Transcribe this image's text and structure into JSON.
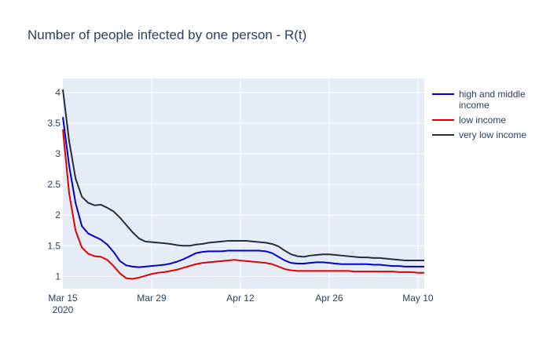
{
  "chart_data": {
    "type": "line",
    "title": "Number of people infected by one person - R(t)",
    "xlabel": "",
    "ylabel": "",
    "x_tick_labels": [
      "Mar 15\n2020",
      "Mar 29",
      "Apr 12",
      "Apr 26",
      "May 10"
    ],
    "y_tick_labels": [
      "1",
      "1.5",
      "2",
      "2.5",
      "3",
      "3.5",
      "4"
    ],
    "ylim": [
      0.8,
      4.23
    ],
    "xlim": [
      "2020-03-15",
      "2020-05-11"
    ],
    "grid": true,
    "legend_position": "top-right",
    "background_color": "#e5ecf6",
    "x": [
      "2020-03-15",
      "2020-03-16",
      "2020-03-17",
      "2020-03-18",
      "2020-03-19",
      "2020-03-20",
      "2020-03-21",
      "2020-03-22",
      "2020-03-23",
      "2020-03-24",
      "2020-03-25",
      "2020-03-26",
      "2020-03-27",
      "2020-03-28",
      "2020-03-29",
      "2020-03-30",
      "2020-03-31",
      "2020-04-01",
      "2020-04-02",
      "2020-04-03",
      "2020-04-04",
      "2020-04-05",
      "2020-04-06",
      "2020-04-07",
      "2020-04-08",
      "2020-04-09",
      "2020-04-10",
      "2020-04-11",
      "2020-04-12",
      "2020-04-13",
      "2020-04-14",
      "2020-04-15",
      "2020-04-16",
      "2020-04-17",
      "2020-04-18",
      "2020-04-19",
      "2020-04-20",
      "2020-04-21",
      "2020-04-22",
      "2020-04-23",
      "2020-04-24",
      "2020-04-25",
      "2020-04-26",
      "2020-04-27",
      "2020-04-28",
      "2020-04-29",
      "2020-04-30",
      "2020-05-01",
      "2020-05-02",
      "2020-05-03",
      "2020-05-04",
      "2020-05-05",
      "2020-05-06",
      "2020-05-07",
      "2020-05-08",
      "2020-05-09",
      "2020-05-10",
      "2020-05-11"
    ],
    "series": [
      {
        "name": "high and middle income",
        "color": "#0000cc",
        "values": [
          3.6,
          2.8,
          2.2,
          1.82,
          1.7,
          1.65,
          1.6,
          1.52,
          1.4,
          1.25,
          1.18,
          1.16,
          1.15,
          1.16,
          1.17,
          1.18,
          1.19,
          1.21,
          1.24,
          1.28,
          1.33,
          1.38,
          1.4,
          1.41,
          1.41,
          1.41,
          1.42,
          1.42,
          1.42,
          1.42,
          1.42,
          1.42,
          1.41,
          1.38,
          1.32,
          1.26,
          1.22,
          1.21,
          1.21,
          1.22,
          1.23,
          1.23,
          1.22,
          1.21,
          1.2,
          1.2,
          1.2,
          1.2,
          1.2,
          1.19,
          1.19,
          1.18,
          1.17,
          1.17,
          1.16,
          1.16,
          1.16,
          1.16
        ]
      },
      {
        "name": "low income",
        "color": "#e00000",
        "values": [
          3.4,
          2.35,
          1.75,
          1.47,
          1.37,
          1.33,
          1.32,
          1.27,
          1.17,
          1.05,
          0.97,
          0.96,
          0.98,
          1.01,
          1.04,
          1.06,
          1.07,
          1.09,
          1.11,
          1.14,
          1.17,
          1.2,
          1.22,
          1.23,
          1.24,
          1.25,
          1.26,
          1.27,
          1.26,
          1.25,
          1.24,
          1.23,
          1.22,
          1.2,
          1.16,
          1.12,
          1.1,
          1.09,
          1.09,
          1.09,
          1.09,
          1.09,
          1.09,
          1.09,
          1.09,
          1.09,
          1.08,
          1.08,
          1.08,
          1.08,
          1.08,
          1.08,
          1.08,
          1.07,
          1.07,
          1.07,
          1.06,
          1.06
        ]
      },
      {
        "name": "very low income",
        "color": "#252c3f",
        "values": [
          4.05,
          3.2,
          2.6,
          2.3,
          2.2,
          2.16,
          2.17,
          2.12,
          2.06,
          1.96,
          1.84,
          1.72,
          1.62,
          1.57,
          1.56,
          1.55,
          1.54,
          1.53,
          1.51,
          1.5,
          1.5,
          1.52,
          1.53,
          1.55,
          1.56,
          1.57,
          1.58,
          1.58,
          1.58,
          1.58,
          1.57,
          1.56,
          1.55,
          1.53,
          1.49,
          1.42,
          1.36,
          1.33,
          1.32,
          1.34,
          1.35,
          1.36,
          1.36,
          1.35,
          1.34,
          1.33,
          1.32,
          1.31,
          1.31,
          1.3,
          1.3,
          1.29,
          1.28,
          1.27,
          1.26,
          1.26,
          1.26,
          1.26
        ]
      }
    ]
  }
}
